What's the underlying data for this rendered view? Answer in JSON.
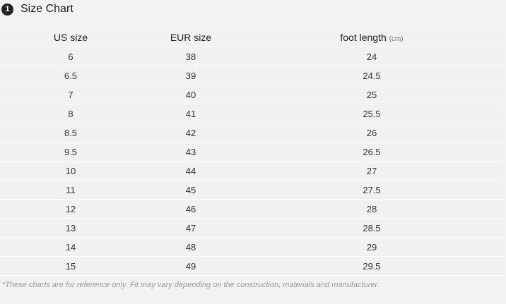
{
  "header": {
    "badge_number": "1",
    "title": "Size Chart"
  },
  "table": {
    "columns": [
      "US size",
      "EUR size",
      "foot length"
    ],
    "foot_length_unit": "(cm)",
    "rows": [
      [
        "6",
        "38",
        "24"
      ],
      [
        "6.5",
        "39",
        "24.5"
      ],
      [
        "7",
        "40",
        "25"
      ],
      [
        "8",
        "41",
        "25.5"
      ],
      [
        "8.5",
        "42",
        "26"
      ],
      [
        "9.5",
        "43",
        "26.5"
      ],
      [
        "10",
        "44",
        "27"
      ],
      [
        "11",
        "45",
        "27.5"
      ],
      [
        "12",
        "46",
        "28"
      ],
      [
        "13",
        "47",
        "28.5"
      ],
      [
        "14",
        "48",
        "29"
      ],
      [
        "15",
        "49",
        "29.5"
      ]
    ]
  },
  "footnote": "*These charts are for reference only. Fit may vary depending on the construction, materials and manufacturer.",
  "colors": {
    "background": "#f2f2f2",
    "row_divider": "#ffffff",
    "badge": "#222222"
  }
}
